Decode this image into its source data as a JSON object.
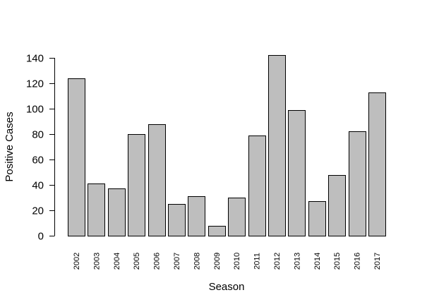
{
  "chart_data": {
    "type": "bar",
    "categories": [
      "2002",
      "2003",
      "2004",
      "2005",
      "2006",
      "2007",
      "2008",
      "2009",
      "2010",
      "2011",
      "2012",
      "2013",
      "2014",
      "2015",
      "2016",
      "2017"
    ],
    "values": [
      124,
      41,
      37,
      80,
      88,
      25,
      31,
      8,
      30,
      79,
      142,
      99,
      27,
      48,
      82,
      113
    ],
    "xlabel": "Season",
    "ylabel": "Positive Cases",
    "ylim": [
      0,
      140
    ],
    "yticks": [
      0,
      20,
      40,
      60,
      80,
      100,
      120,
      140
    ],
    "grid": false,
    "colors": {
      "bar_fill": "#bebebe",
      "bar_stroke": "#000000",
      "axis": "#000000"
    }
  }
}
